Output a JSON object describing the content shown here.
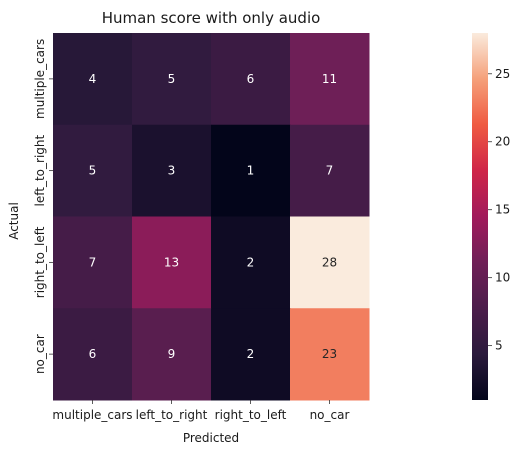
{
  "chart_data": {
    "type": "heatmap",
    "title": "Human score with only audio",
    "xlabel": "Predicted",
    "ylabel": "Actual",
    "x_categories": [
      "multiple_cars",
      "left_to_right",
      "right_to_left",
      "no_car"
    ],
    "y_categories": [
      "multiple_cars",
      "left_to_right",
      "right_to_left",
      "no_car"
    ],
    "values": [
      [
        4,
        5,
        6,
        11
      ],
      [
        5,
        3,
        1,
        7
      ],
      [
        7,
        13,
        2,
        28
      ],
      [
        6,
        9,
        2,
        23
      ]
    ],
    "colormap": "rocket",
    "color_range": [
      1,
      28
    ],
    "colorbar_ticks": [
      5,
      10,
      15,
      20,
      25
    ],
    "annotation_colors": {
      "light": "#ffffff",
      "dark": "#262626"
    }
  }
}
